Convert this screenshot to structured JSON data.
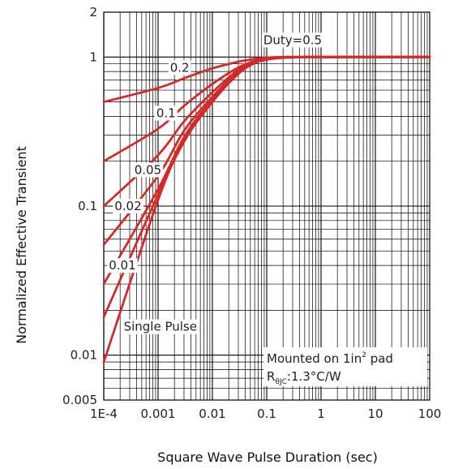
{
  "chart_data": {
    "type": "line",
    "title": "",
    "xlabel": "Square Wave Pulse Duration (sec)",
    "ylabel": "Normalized Effective Transient",
    "x_scale": "log",
    "y_scale": "log",
    "xlim": [
      0.0001,
      100
    ],
    "ylim": [
      0.005,
      2
    ],
    "grid": true,
    "x_ticks": [
      {
        "value": 0.0001,
        "label": "1E-4"
      },
      {
        "value": 0.001,
        "label": "0.001"
      },
      {
        "value": 0.01,
        "label": "0.01"
      },
      {
        "value": 0.1,
        "label": "0.1"
      },
      {
        "value": 1,
        "label": "1"
      },
      {
        "value": 10,
        "label": "10"
      },
      {
        "value": 100,
        "label": "100"
      }
    ],
    "y_ticks": [
      {
        "value": 0.005,
        "label": "0.005"
      },
      {
        "value": 0.01,
        "label": "0.01"
      },
      {
        "value": 0.1,
        "label": "0.1"
      },
      {
        "value": 1,
        "label": "1"
      },
      {
        "value": 2,
        "label": "2"
      }
    ],
    "line_color": "#d42a2a",
    "grid_color": "#000000",
    "series": [
      {
        "name": "Duty=0.5",
        "label_at": [
          0.3,
          1.3
        ],
        "x": [
          0.0001,
          0.001,
          0.003,
          0.01,
          0.03,
          0.06,
          0.1,
          0.2,
          0.5,
          1,
          10,
          100
        ],
        "y": [
          0.5,
          0.62,
          0.72,
          0.84,
          0.93,
          0.97,
          0.99,
          1.0,
          1.0,
          1.0,
          1.0,
          1.0
        ]
      },
      {
        "name": "0.2",
        "label_at": [
          0.0025,
          0.85
        ],
        "x": [
          0.0001,
          0.001,
          0.003,
          0.01,
          0.03,
          0.06,
          0.1,
          0.2,
          0.5,
          1,
          10,
          100
        ],
        "y": [
          0.2,
          0.33,
          0.47,
          0.66,
          0.85,
          0.94,
          0.98,
          1.0,
          1.0,
          1.0,
          1.0,
          1.0
        ]
      },
      {
        "name": "0.1",
        "label_at": [
          0.0014,
          0.42
        ],
        "x": [
          0.0001,
          0.001,
          0.003,
          0.01,
          0.03,
          0.06,
          0.1,
          0.2,
          0.5,
          1,
          10,
          100
        ],
        "y": [
          0.1,
          0.22,
          0.37,
          0.58,
          0.82,
          0.93,
          0.97,
          0.99,
          1.0,
          1.0,
          1.0,
          1.0
        ]
      },
      {
        "name": "0.05",
        "label_at": [
          0.00065,
          0.175
        ],
        "x": [
          0.0001,
          0.001,
          0.003,
          0.01,
          0.03,
          0.06,
          0.1,
          0.2,
          0.5,
          1,
          10,
          100
        ],
        "y": [
          0.055,
          0.16,
          0.32,
          0.54,
          0.8,
          0.92,
          0.97,
          0.99,
          1.0,
          1.0,
          1.0,
          1.0
        ]
      },
      {
        "name": "0.02",
        "label_at": [
          0.00028,
          0.1
        ],
        "x": [
          0.0001,
          0.001,
          0.003,
          0.01,
          0.03,
          0.06,
          0.1,
          0.2,
          0.5,
          1,
          10,
          100
        ],
        "y": [
          0.03,
          0.13,
          0.29,
          0.52,
          0.79,
          0.92,
          0.97,
          0.99,
          1.0,
          1.0,
          1.0,
          1.0
        ]
      },
      {
        "name": "0.01",
        "label_at": [
          0.00022,
          0.04
        ],
        "x": [
          0.0001,
          0.001,
          0.003,
          0.01,
          0.03,
          0.06,
          0.1,
          0.2,
          0.5,
          1,
          10,
          100
        ],
        "y": [
          0.018,
          0.12,
          0.28,
          0.51,
          0.78,
          0.91,
          0.97,
          0.99,
          1.0,
          1.0,
          1.0,
          1.0
        ]
      },
      {
        "name": "Single Pulse",
        "label_at": [
          0.0011,
          0.0155
        ],
        "x": [
          0.0001,
          0.001,
          0.003,
          0.01,
          0.03,
          0.06,
          0.1,
          0.2,
          0.5,
          1,
          10,
          100
        ],
        "y": [
          0.009,
          0.11,
          0.27,
          0.5,
          0.77,
          0.91,
          0.96,
          0.99,
          1.0,
          1.0,
          1.0,
          1.0
        ]
      }
    ],
    "annotation": {
      "line1": "Mounted on 1in",
      "line1_sup": "2",
      "line1_tail": " pad",
      "line2_main": "R",
      "line2_sub": "θJC",
      "line2_tail": ":1.3°C/W"
    }
  }
}
